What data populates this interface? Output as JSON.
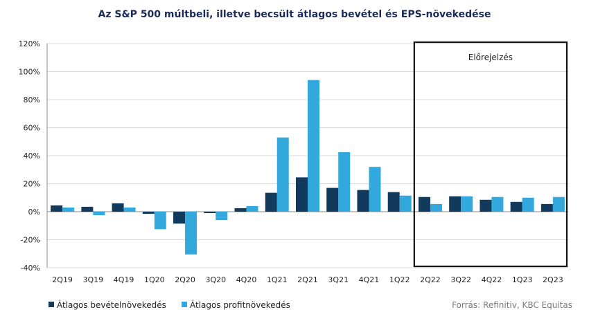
{
  "chart_data": {
    "type": "bar",
    "title": "Az S&P 500 múltbeli, illetve becsült átlagos bevétel és EPS-növekedése",
    "categories": [
      "2Q19",
      "3Q19",
      "4Q19",
      "1Q20",
      "2Q20",
      "3Q20",
      "4Q20",
      "1Q21",
      "2Q21",
      "3Q21",
      "4Q21",
      "1Q22",
      "2Q22",
      "3Q22",
      "4Q22",
      "1Q23",
      "2Q23"
    ],
    "series": [
      {
        "name": "Átlagos bevételnövekedés",
        "color": "#123a5c",
        "values": [
          4.5,
          3.5,
          6,
          -1.5,
          -8.5,
          -1,
          2.5,
          13.5,
          24.5,
          17,
          15.5,
          14,
          10.5,
          11,
          8.5,
          7,
          5.5
        ]
      },
      {
        "name": "Átlagos profitnövekedés",
        "color": "#33a8dd",
        "values": [
          3,
          -2.5,
          3,
          -12.5,
          -30.5,
          -6,
          4,
          53,
          94,
          42.5,
          32,
          11.5,
          5.5,
          11,
          10.5,
          10,
          10.5
        ]
      }
    ],
    "ylim": [
      -40,
      120
    ],
    "yticks": [
      -40,
      -20,
      0,
      20,
      40,
      60,
      80,
      100,
      120
    ],
    "ytick_suffix": "%",
    "grid": true,
    "legend_position": "bottom-left",
    "forecast_box": {
      "label": "Előrejelzés",
      "from_category": "2Q22",
      "to_category": "2Q23"
    },
    "source": "Forrás: Refinitiv, KBC Equitas"
  }
}
